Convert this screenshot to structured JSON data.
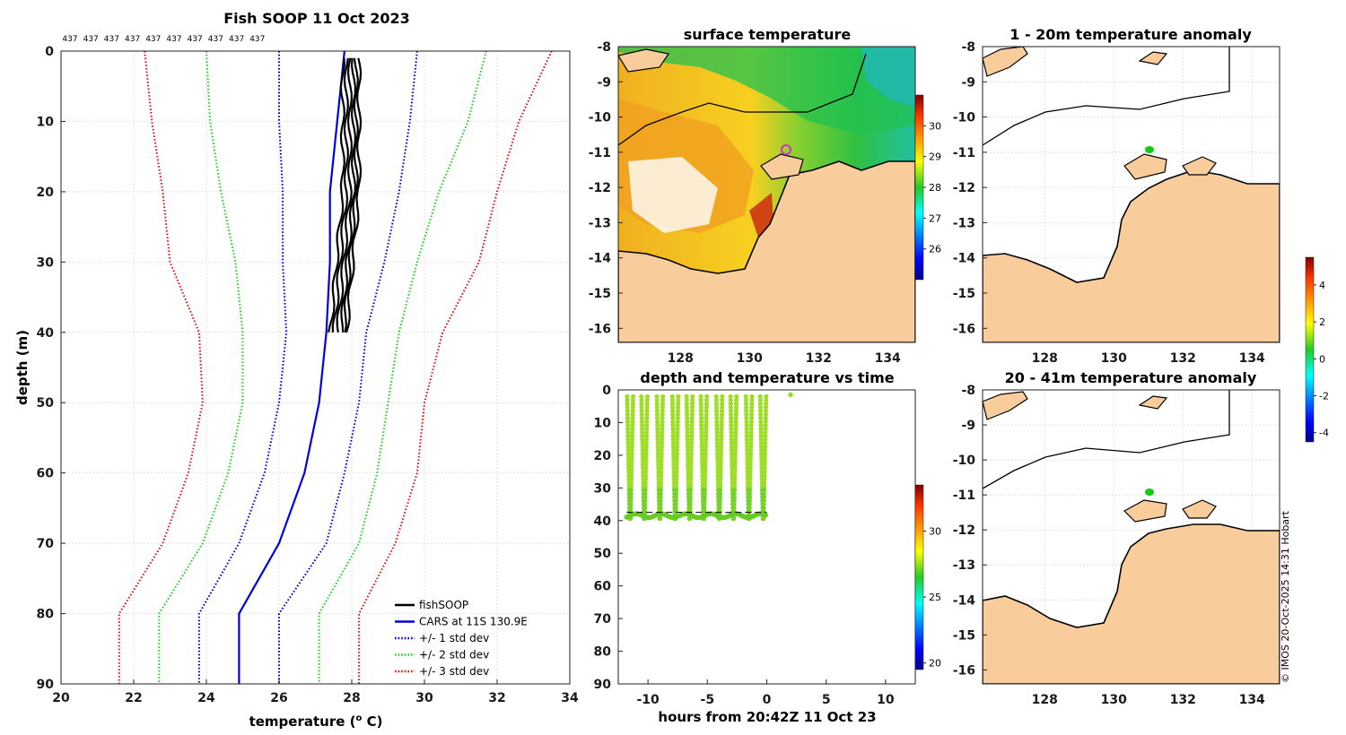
{
  "chart_data": [
    {
      "type": "line",
      "title": "Fish SOOP 11 Oct 2023",
      "annotation_row": [
        "437",
        "437",
        "437",
        "437",
        "437",
        "437",
        "437",
        "437",
        "437",
        "437"
      ],
      "xlabel": "temperature (o C)",
      "xlabel_main": "temperature (",
      "xlabel_sup": "o",
      "xlabel_end": " C)",
      "ylabel": "depth (m)",
      "xlim": [
        20,
        34
      ],
      "ylim": [
        0,
        90
      ],
      "xticks": [
        "20",
        "22",
        "24",
        "26",
        "28",
        "30",
        "32",
        "34"
      ],
      "yticks": [
        "0",
        "10",
        "20",
        "30",
        "40",
        "50",
        "60",
        "70",
        "80",
        "90"
      ],
      "legend_position": "bottom-right",
      "depth": [
        0,
        10,
        20,
        30,
        40,
        50,
        60,
        70,
        80,
        90
      ],
      "series": [
        {
          "name": "CARS at 11S 130.9E",
          "style": "solid",
          "color": "#0000dd",
          "values": [
            27.8,
            27.6,
            27.4,
            27.4,
            27.3,
            27.1,
            26.7,
            26.0,
            24.9,
            24.9
          ]
        },
        {
          "name": "+/- 1 std dev",
          "style": "dotted",
          "color": "#0000dd",
          "values": [
            26.0,
            26.0,
            26.1,
            26.1,
            26.2,
            26.0,
            25.6,
            24.9,
            23.8,
            23.8
          ]
        },
        {
          "name": "",
          "style": "dotted",
          "color": "#0000dd",
          "values": [
            29.8,
            29.6,
            29.3,
            28.9,
            28.4,
            28.2,
            27.8,
            27.3,
            26.0,
            26.0
          ]
        },
        {
          "name": "+/- 2 std dev",
          "style": "dotted",
          "color": "#22cc22",
          "values": [
            24.0,
            24.1,
            24.4,
            24.8,
            25.0,
            25.0,
            24.6,
            23.9,
            22.7,
            22.7
          ]
        },
        {
          "name": "",
          "style": "dotted",
          "color": "#22cc22",
          "values": [
            31.7,
            31.2,
            30.4,
            29.8,
            29.3,
            29.0,
            28.7,
            28.2,
            27.1,
            27.1
          ]
        },
        {
          "name": "+/- 3 std dev",
          "style": "dotted",
          "color": "#dd1111",
          "values": [
            22.3,
            22.5,
            22.8,
            23.0,
            23.8,
            23.9,
            23.5,
            22.8,
            21.6,
            21.6
          ]
        },
        {
          "name": "",
          "style": "dotted",
          "color": "#dd1111",
          "values": [
            33.5,
            32.6,
            32.0,
            31.5,
            30.5,
            30.0,
            29.8,
            29.2,
            28.2,
            28.2
          ]
        },
        {
          "name": "fishSOOP",
          "style": "solid",
          "color": "#000000",
          "values": [
            28.0,
            28.0,
            28.0,
            27.9,
            27.7,
            null,
            null,
            null,
            null,
            null
          ]
        }
      ],
      "legend": [
        {
          "label": "fishSOOP",
          "color": "#000000",
          "style": "solid"
        },
        {
          "label": "CARS at 11S 130.9E",
          "color": "#0000dd",
          "style": "solid"
        },
        {
          "label": "+/- 1 std dev",
          "color": "#0000dd",
          "style": "dotted"
        },
        {
          "label": "+/- 2 std dev",
          "color": "#22cc22",
          "style": "dotted"
        },
        {
          "label": "+/- 3 std dev",
          "color": "#dd1111",
          "style": "dotted"
        }
      ]
    },
    {
      "type": "heatmap",
      "title": "surface temperature",
      "xticks": [
        "128",
        "130",
        "132",
        "134"
      ],
      "yticks": [
        "-8",
        "-9",
        "-10",
        "-11",
        "-12",
        "-13",
        "-14",
        "-15",
        "-16"
      ],
      "xlim": [
        126.2,
        134.8
      ],
      "ylim": [
        -16.4,
        -8
      ],
      "colorbar": {
        "min": 25,
        "max": 31,
        "ticks": [
          "30",
          "29",
          "28",
          "27",
          "26"
        ]
      },
      "marker": {
        "lon": 130.9,
        "lat": -11.0,
        "color": "#cc33cc"
      }
    },
    {
      "type": "scatter",
      "title": "depth and temperature vs time",
      "xlabel": "hours from 20:42Z 11 Oct 23",
      "xlim": [
        -12.5,
        12.5
      ],
      "ylim": [
        0,
        90
      ],
      "xticks": [
        "-10",
        "-5",
        "0",
        "5",
        "10"
      ],
      "yticks": [
        "0",
        "10",
        "20",
        "30",
        "40",
        "50",
        "60",
        "70",
        "80",
        "90"
      ],
      "cast_times": [
        -11.5,
        -10.3,
        -9.0,
        -7.7,
        -6.5,
        -5.3,
        -4.0,
        -2.8,
        -1.5,
        -0.3
      ],
      "cast_depth": [
        2,
        40
      ],
      "extra_point": {
        "x": 2.0,
        "y": 1.5
      },
      "colorbar": {
        "min": 19.5,
        "max": 33.5,
        "ticks": [
          "30",
          "25",
          "20"
        ]
      }
    },
    {
      "type": "heatmap",
      "title": "1 - 20m temperature anomaly",
      "xticks": [
        "128",
        "130",
        "132",
        "134"
      ],
      "yticks": [
        "-8",
        "-9",
        "-10",
        "-11",
        "-12",
        "-13",
        "-14",
        "-15",
        "-16"
      ],
      "xlim": [
        126.2,
        134.8
      ],
      "ylim": [
        -16.4,
        -8
      ],
      "marker": {
        "lon": 130.9,
        "lat": -11.0,
        "color": "#11cc11"
      }
    },
    {
      "type": "heatmap",
      "title": "20 - 41m temperature anomaly",
      "xticks": [
        "128",
        "130",
        "132",
        "134"
      ],
      "yticks": [
        "-8",
        "-9",
        "-10",
        "-11",
        "-12",
        "-13",
        "-14",
        "-15",
        "-16"
      ],
      "xlim": [
        126.2,
        134.8
      ],
      "ylim": [
        -16.4,
        -8
      ],
      "marker": {
        "lon": 130.9,
        "lat": -11.0,
        "color": "#11cc11"
      },
      "colorbar": {
        "min": -4.5,
        "max": 5.5,
        "ticks": [
          "4",
          "2",
          "0",
          "-2",
          "-4"
        ]
      }
    }
  ],
  "credit": "© IMOS 20-Oct-2025 14:31 Hobart"
}
